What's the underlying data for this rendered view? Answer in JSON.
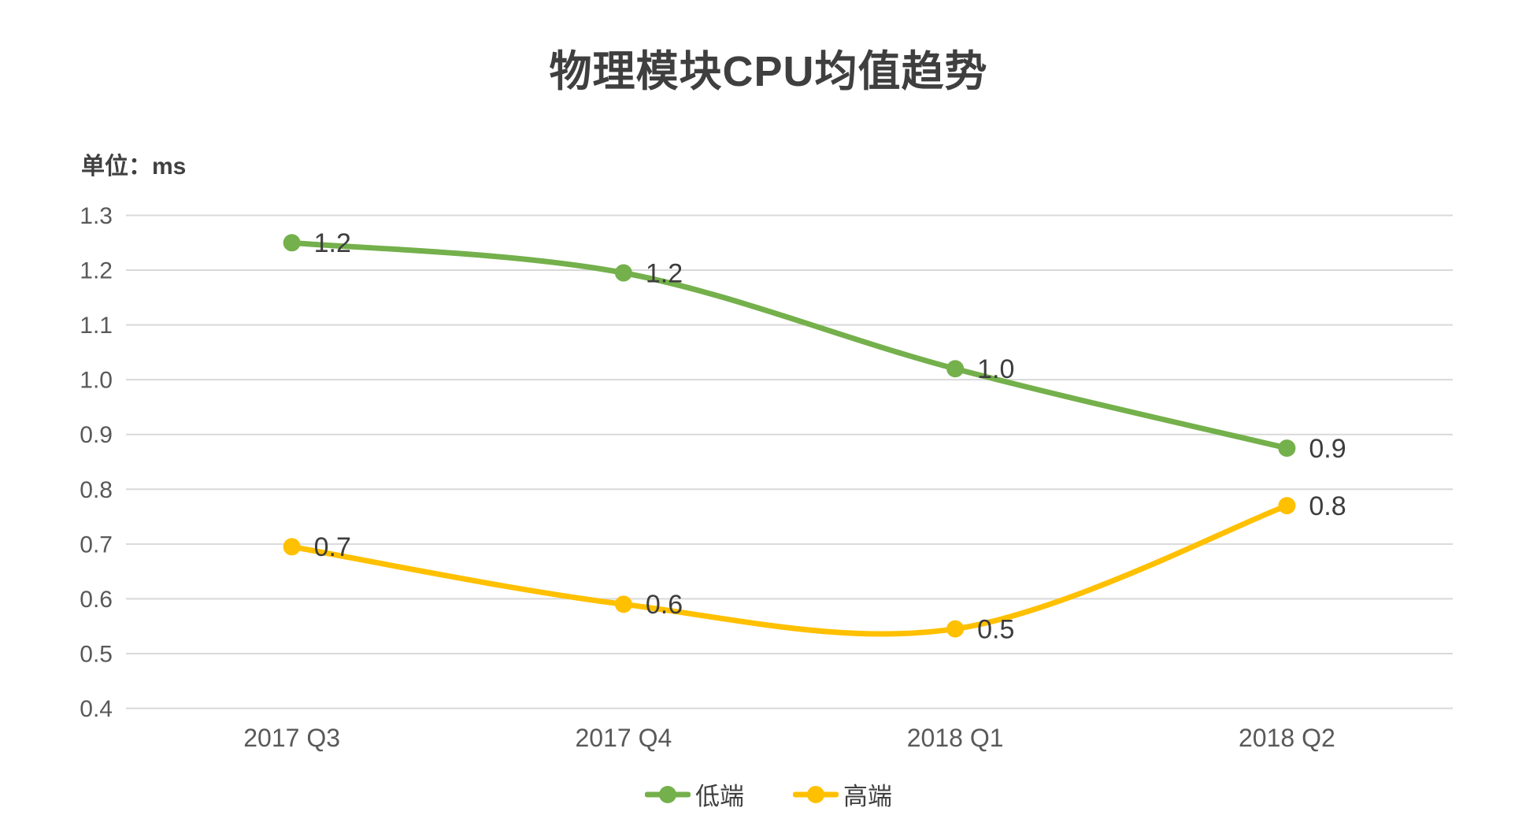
{
  "title": "物理模块CPU均值趋势",
  "unit_label": "单位：ms",
  "chart_data": {
    "type": "line",
    "title": "物理模块CPU均值趋势",
    "unit": "ms",
    "smooth": true,
    "grid": "horizontal-only",
    "legend_position": "bottom",
    "categories": [
      "2017 Q3",
      "2017 Q4",
      "2018 Q1",
      "2018 Q2"
    ],
    "series": [
      {
        "id": "low-end",
        "name": "低端",
        "color": "#74B04B",
        "values": [
          1.25,
          1.195,
          1.02,
          0.875
        ],
        "labels": [
          "1.2",
          "1.2",
          "1.0",
          "0.9"
        ]
      },
      {
        "id": "high-end",
        "name": "高端",
        "color": "#FFC000",
        "values": [
          0.695,
          0.59,
          0.545,
          0.77
        ],
        "labels": [
          "0.7",
          "0.6",
          "0.5",
          "0.8"
        ]
      }
    ],
    "y_axis": {
      "min": 0.4,
      "max": 1.3,
      "step": 0.1,
      "ticks": [
        "1.3",
        "1.2",
        "1.1",
        "1.0",
        "0.9",
        "0.8",
        "0.7",
        "0.6",
        "0.5",
        "0.4"
      ]
    },
    "x_axis": {
      "labels": [
        "2017 Q3",
        "2017 Q4",
        "2018 Q1",
        "2018 Q2"
      ]
    },
    "colors": {
      "gridline": "#D9D9D9",
      "tick_text": "#595959",
      "title_text": "#3F3F3F",
      "data_label_text": "#3D3D3D"
    }
  }
}
